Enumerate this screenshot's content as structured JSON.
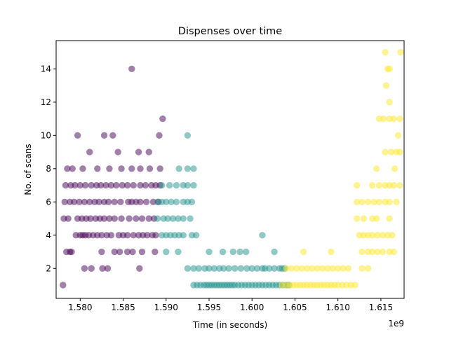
{
  "chart_data": {
    "type": "scatter",
    "title": "Dispenses over time",
    "xlabel": "Time (in seconds)",
    "ylabel": "No. of scans",
    "x_offset_label": "1e9",
    "xlim": [
      1.5772,
      1.6177
    ],
    "ylim": [
      0.2,
      15.7
    ],
    "x_ticks": [
      1.58,
      1.585,
      1.59,
      1.595,
      1.6,
      1.605,
      1.61,
      1.615
    ],
    "x_tick_labels": [
      "1.580",
      "1.585",
      "1.590",
      "1.595",
      "1.600",
      "1.605",
      "1.610",
      "1.615"
    ],
    "y_ticks": [
      2,
      4,
      6,
      8,
      10,
      12,
      14
    ],
    "y_tick_labels": [
      "2",
      "4",
      "6",
      "8",
      "10",
      "12",
      "14"
    ],
    "grid": false,
    "legend": "none",
    "colors": {
      "purple": "#440154",
      "teal": "#21918c",
      "yellow": "#fde725"
    },
    "series": [
      {
        "color": "#440154",
        "points": [
          [
            1.578,
            1
          ],
          [
            1.5784,
            3
          ],
          [
            1.5788,
            3
          ],
          [
            1.579,
            3
          ],
          [
            1.5795,
            4
          ],
          [
            1.58,
            4
          ],
          [
            1.5803,
            4
          ],
          [
            1.5806,
            4
          ],
          [
            1.581,
            4
          ],
          [
            1.5815,
            4
          ],
          [
            1.582,
            4
          ],
          [
            1.5825,
            4
          ],
          [
            1.5831,
            4
          ],
          [
            1.5836,
            4
          ],
          [
            1.5845,
            4
          ],
          [
            1.585,
            4
          ],
          [
            1.5855,
            4
          ],
          [
            1.5862,
            4
          ],
          [
            1.5868,
            4
          ],
          [
            1.5873,
            4
          ],
          [
            1.5878,
            4
          ],
          [
            1.5884,
            4
          ],
          [
            1.5888,
            4
          ],
          [
            1.5781,
            5
          ],
          [
            1.5786,
            5
          ],
          [
            1.5797,
            5
          ],
          [
            1.5802,
            5
          ],
          [
            1.5807,
            5
          ],
          [
            1.5812,
            5
          ],
          [
            1.5818,
            5
          ],
          [
            1.5823,
            5
          ],
          [
            1.5828,
            5
          ],
          [
            1.5834,
            5
          ],
          [
            1.584,
            5
          ],
          [
            1.5848,
            5
          ],
          [
            1.5857,
            5
          ],
          [
            1.5865,
            5
          ],
          [
            1.5872,
            5
          ],
          [
            1.588,
            5
          ],
          [
            1.5886,
            5
          ],
          [
            1.5782,
            6
          ],
          [
            1.5788,
            6
          ],
          [
            1.5793,
            6
          ],
          [
            1.5799,
            6
          ],
          [
            1.5805,
            6
          ],
          [
            1.5811,
            6
          ],
          [
            1.5817,
            6
          ],
          [
            1.5822,
            6
          ],
          [
            1.5828,
            6
          ],
          [
            1.5833,
            6
          ],
          [
            1.584,
            6
          ],
          [
            1.5847,
            6
          ],
          [
            1.5856,
            6
          ],
          [
            1.586,
            6
          ],
          [
            1.5865,
            6
          ],
          [
            1.587,
            6
          ],
          [
            1.5877,
            6
          ],
          [
            1.5885,
            6
          ],
          [
            1.5891,
            6
          ],
          [
            1.5783,
            7
          ],
          [
            1.5789,
            7
          ],
          [
            1.5794,
            7
          ],
          [
            1.58,
            7
          ],
          [
            1.5806,
            7
          ],
          [
            1.5813,
            7
          ],
          [
            1.5819,
            7
          ],
          [
            1.5824,
            7
          ],
          [
            1.583,
            7
          ],
          [
            1.5836,
            7
          ],
          [
            1.5842,
            7
          ],
          [
            1.5849,
            7
          ],
          [
            1.5855,
            7
          ],
          [
            1.5862,
            7
          ],
          [
            1.587,
            7
          ],
          [
            1.5876,
            7
          ],
          [
            1.5883,
            7
          ],
          [
            1.5888,
            7
          ],
          [
            1.5893,
            7
          ],
          [
            1.5785,
            8
          ],
          [
            1.5791,
            8
          ],
          [
            1.5803,
            8
          ],
          [
            1.582,
            8
          ],
          [
            1.5834,
            8
          ],
          [
            1.5848,
            8
          ],
          [
            1.586,
            8
          ],
          [
            1.587,
            8
          ],
          [
            1.5881,
            8
          ],
          [
            1.5893,
            8
          ],
          [
            1.5811,
            9
          ],
          [
            1.5844,
            9
          ],
          [
            1.5868,
            9
          ],
          [
            1.588,
            9
          ],
          [
            1.5797,
            10
          ],
          [
            1.5828,
            10
          ],
          [
            1.5838,
            10
          ],
          [
            1.5892,
            10
          ],
          [
            1.5896,
            11
          ],
          [
            1.586,
            14
          ],
          [
            1.5805,
            2
          ],
          [
            1.5813,
            2
          ],
          [
            1.5826,
            2
          ],
          [
            1.5832,
            2
          ],
          [
            1.5869,
            2
          ],
          [
            1.5825,
            3
          ],
          [
            1.584,
            3
          ],
          [
            1.5846,
            3
          ],
          [
            1.5855,
            3
          ],
          [
            1.5861,
            3
          ],
          [
            1.5872,
            3
          ],
          [
            1.5887,
            3
          ]
        ]
      },
      {
        "color": "#21918c",
        "points": [
          [
            1.5895,
            4
          ],
          [
            1.59,
            4
          ],
          [
            1.5905,
            4
          ],
          [
            1.591,
            4
          ],
          [
            1.5915,
            4
          ],
          [
            1.592,
            4
          ],
          [
            1.593,
            4
          ],
          [
            1.5935,
            4
          ],
          [
            1.6012,
            4
          ],
          [
            1.589,
            5
          ],
          [
            1.5897,
            5
          ],
          [
            1.5902,
            5
          ],
          [
            1.5908,
            5
          ],
          [
            1.5914,
            5
          ],
          [
            1.592,
            5
          ],
          [
            1.5928,
            5
          ],
          [
            1.589,
            6
          ],
          [
            1.5895,
            6
          ],
          [
            1.59,
            6
          ],
          [
            1.5906,
            6
          ],
          [
            1.5912,
            6
          ],
          [
            1.592,
            6
          ],
          [
            1.5925,
            6
          ],
          [
            1.593,
            6
          ],
          [
            1.5895,
            7
          ],
          [
            1.5904,
            7
          ],
          [
            1.5912,
            7
          ],
          [
            1.592,
            7
          ],
          [
            1.5925,
            7
          ],
          [
            1.5932,
            7
          ],
          [
            1.5915,
            8
          ],
          [
            1.5925,
            8
          ],
          [
            1.5932,
            8
          ],
          [
            1.5925,
            10
          ],
          [
            1.59,
            3
          ],
          [
            1.5914,
            3
          ],
          [
            1.595,
            3
          ],
          [
            1.5966,
            3
          ],
          [
            1.5978,
            3
          ],
          [
            1.5986,
            3
          ],
          [
            1.5993,
            3
          ],
          [
            1.6026,
            3
          ],
          [
            1.5925,
            2
          ],
          [
            1.5932,
            2
          ],
          [
            1.5938,
            2
          ],
          [
            1.5945,
            2
          ],
          [
            1.595,
            2
          ],
          [
            1.5956,
            2
          ],
          [
            1.5962,
            2
          ],
          [
            1.5967,
            2
          ],
          [
            1.5973,
            2
          ],
          [
            1.598,
            2
          ],
          [
            1.5987,
            2
          ],
          [
            1.5994,
            2
          ],
          [
            1.6,
            2
          ],
          [
            1.6006,
            2
          ],
          [
            1.6012,
            2
          ],
          [
            1.6015,
            2
          ],
          [
            1.602,
            2
          ],
          [
            1.6026,
            2
          ],
          [
            1.6032,
            2
          ],
          [
            1.6035,
            2
          ],
          [
            1.6038,
            2
          ],
          [
            1.5932,
            1
          ],
          [
            1.5936,
            1
          ],
          [
            1.594,
            1
          ],
          [
            1.5944,
            1
          ],
          [
            1.5947,
            1
          ],
          [
            1.595,
            1
          ],
          [
            1.5953,
            1
          ],
          [
            1.5956,
            1
          ],
          [
            1.5959,
            1
          ],
          [
            1.5962,
            1
          ],
          [
            1.5965,
            1
          ],
          [
            1.5968,
            1
          ],
          [
            1.5971,
            1
          ],
          [
            1.5974,
            1
          ],
          [
            1.5977,
            1
          ],
          [
            1.598,
            1
          ],
          [
            1.5984,
            1
          ],
          [
            1.5988,
            1
          ],
          [
            1.5992,
            1
          ],
          [
            1.5996,
            1
          ],
          [
            1.6,
            1
          ],
          [
            1.6004,
            1
          ],
          [
            1.6008,
            1
          ],
          [
            1.6012,
            1
          ],
          [
            1.6016,
            1
          ],
          [
            1.602,
            1
          ],
          [
            1.6024,
            1
          ],
          [
            1.6028,
            1
          ],
          [
            1.6032,
            1
          ],
          [
            1.6036,
            1
          ],
          [
            1.604,
            1
          ],
          [
            1.6043,
            1
          ]
        ]
      },
      {
        "color": "#fde725",
        "points": [
          [
            1.6035,
            1
          ],
          [
            1.604,
            1
          ],
          [
            1.6044,
            1
          ],
          [
            1.6048,
            1
          ],
          [
            1.6052,
            1
          ],
          [
            1.6056,
            1
          ],
          [
            1.606,
            1
          ],
          [
            1.6064,
            1
          ],
          [
            1.6068,
            1
          ],
          [
            1.6072,
            1
          ],
          [
            1.6076,
            1
          ],
          [
            1.608,
            1
          ],
          [
            1.6084,
            1
          ],
          [
            1.6088,
            1
          ],
          [
            1.6092,
            1
          ],
          [
            1.6096,
            1
          ],
          [
            1.61,
            1
          ],
          [
            1.6105,
            1
          ],
          [
            1.611,
            1
          ],
          [
            1.6115,
            1
          ],
          [
            1.612,
            1
          ],
          [
            1.604,
            2
          ],
          [
            1.6046,
            2
          ],
          [
            1.6052,
            2
          ],
          [
            1.6058,
            2
          ],
          [
            1.6064,
            2
          ],
          [
            1.607,
            2
          ],
          [
            1.6076,
            2
          ],
          [
            1.6082,
            2
          ],
          [
            1.6088,
            2
          ],
          [
            1.6094,
            2
          ],
          [
            1.61,
            2
          ],
          [
            1.6106,
            2
          ],
          [
            1.6112,
            2
          ],
          [
            1.6128,
            2
          ],
          [
            1.6135,
            2
          ],
          [
            1.606,
            3
          ],
          [
            1.6092,
            3
          ],
          [
            1.6128,
            3
          ],
          [
            1.6135,
            3
          ],
          [
            1.614,
            3
          ],
          [
            1.6146,
            3
          ],
          [
            1.6152,
            3
          ],
          [
            1.616,
            3
          ],
          [
            1.6165,
            3
          ],
          [
            1.6125,
            4
          ],
          [
            1.613,
            4
          ],
          [
            1.6135,
            4
          ],
          [
            1.614,
            4
          ],
          [
            1.6146,
            4
          ],
          [
            1.6152,
            4
          ],
          [
            1.6158,
            4
          ],
          [
            1.6163,
            4
          ],
          [
            1.6122,
            5
          ],
          [
            1.613,
            5
          ],
          [
            1.614,
            5
          ],
          [
            1.6145,
            5
          ],
          [
            1.616,
            5
          ],
          [
            1.6122,
            6
          ],
          [
            1.6128,
            6
          ],
          [
            1.6135,
            6
          ],
          [
            1.6142,
            6
          ],
          [
            1.6148,
            6
          ],
          [
            1.6155,
            6
          ],
          [
            1.616,
            6
          ],
          [
            1.6168,
            6
          ],
          [
            1.6122,
            7
          ],
          [
            1.614,
            7
          ],
          [
            1.6148,
            7
          ],
          [
            1.6155,
            7
          ],
          [
            1.616,
            7
          ],
          [
            1.6165,
            7
          ],
          [
            1.6172,
            7
          ],
          [
            1.6145,
            8
          ],
          [
            1.6166,
            8
          ],
          [
            1.6155,
            9
          ],
          [
            1.6162,
            9
          ],
          [
            1.6168,
            9
          ],
          [
            1.6172,
            9
          ],
          [
            1.617,
            10
          ],
          [
            1.6148,
            11
          ],
          [
            1.6153,
            11
          ],
          [
            1.616,
            11
          ],
          [
            1.6165,
            11
          ],
          [
            1.6172,
            11
          ],
          [
            1.616,
            12
          ],
          [
            1.6156,
            13
          ],
          [
            1.6158,
            14
          ],
          [
            1.616,
            14
          ],
          [
            1.6155,
            15
          ],
          [
            1.6173,
            15
          ]
        ]
      }
    ]
  }
}
